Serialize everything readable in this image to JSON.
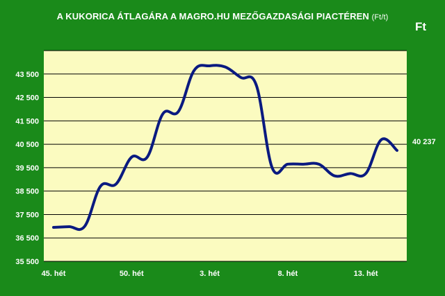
{
  "title": {
    "main": "A KUKORICA ÁTLAGÁRA A MAGRO.HU MEZŐGAZDASÁGI PIACTÉREN",
    "unit_suffix": "(Ft/t)"
  },
  "unit_label": "Ft",
  "last_value_label": "40 237",
  "colors": {
    "background": "#1a8a1a",
    "plot_area": "#fbfbc0",
    "line": "#0a1a80",
    "grid": "#000000",
    "text": "#ffffff"
  },
  "chart_data": {
    "type": "line",
    "title": "A KUKORICA ÁTLAGÁRA A MAGRO.HU MEZŐGAZDASÁGI PIACTÉREN (Ft/t)",
    "ylabel": "Ft",
    "ylim": [
      35500,
      44500
    ],
    "yticks": [
      35500,
      36500,
      37500,
      38500,
      39500,
      40500,
      41500,
      42500,
      43500
    ],
    "ytick_labels": [
      "35 500",
      "36 500",
      "37 500",
      "38 500",
      "39 500",
      "40 500",
      "41 500",
      "42 500",
      "43 500"
    ],
    "xticks": [
      {
        "index": 0,
        "label": "45. hét"
      },
      {
        "index": 5,
        "label": "50. hét"
      },
      {
        "index": 10,
        "label": "3. hét"
      },
      {
        "index": 15,
        "label": "8. hét"
      },
      {
        "index": 20,
        "label": "13. hét"
      }
    ],
    "grid": true,
    "series": [
      {
        "values": [
          36950,
          36980,
          37000,
          38700,
          38800,
          39950,
          39950,
          41800,
          41900,
          43650,
          43850,
          43800,
          43350,
          43000,
          39500,
          39650,
          39650,
          39650,
          39150,
          39250,
          39250,
          40700,
          40237
        ]
      }
    ]
  }
}
